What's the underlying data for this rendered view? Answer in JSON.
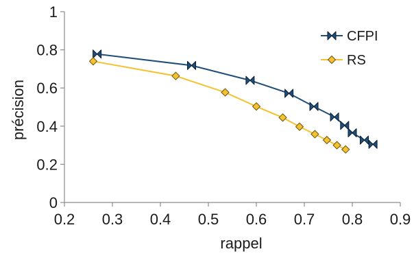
{
  "chart_data": {
    "type": "line",
    "xlabel": "rappel",
    "ylabel": "précision",
    "xlim": [
      0.2,
      0.9
    ],
    "ylim": [
      0,
      1
    ],
    "x_ticks": [
      "0.2",
      "0.3",
      "0.4",
      "0.5",
      "0.6",
      "0.7",
      "0.8",
      "0.9"
    ],
    "y_ticks": [
      "0",
      "0.2",
      "0.4",
      "0.6",
      "0.8",
      "1"
    ],
    "x_tick_values": [
      0.2,
      0.3,
      0.4,
      0.5,
      0.6,
      0.7,
      0.8,
      0.9
    ],
    "y_tick_values": [
      0,
      0.2,
      0.4,
      0.6,
      0.8,
      1
    ],
    "grid": false,
    "legend_position": "top-right",
    "series": [
      {
        "name": "CFPI",
        "color": "#1f4e79",
        "marker": "bowtie",
        "x": [
          0.268,
          0.465,
          0.587,
          0.668,
          0.72,
          0.763,
          0.784,
          0.8,
          0.825,
          0.843
        ],
        "y": [
          0.778,
          0.718,
          0.64,
          0.572,
          0.503,
          0.448,
          0.404,
          0.365,
          0.327,
          0.305
        ]
      },
      {
        "name": "RS",
        "color": "#f5c12e",
        "marker": "diamond",
        "x": [
          0.26,
          0.432,
          0.535,
          0.6,
          0.655,
          0.69,
          0.722,
          0.747,
          0.768,
          0.786
        ],
        "y": [
          0.74,
          0.663,
          0.577,
          0.503,
          0.445,
          0.397,
          0.358,
          0.327,
          0.3,
          0.278
        ]
      }
    ]
  }
}
